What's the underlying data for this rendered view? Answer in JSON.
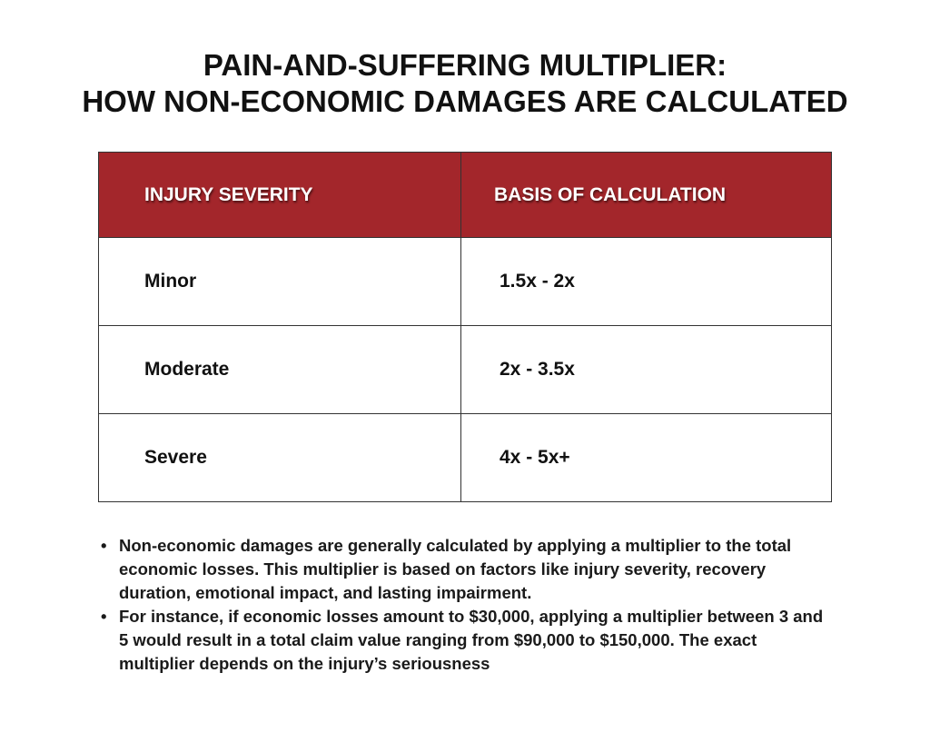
{
  "title": {
    "line1": "PAIN-AND-SUFFERING MULTIPLIER:",
    "line2": "HOW NON-ECONOMIC DAMAGES ARE CALCULATED"
  },
  "table": {
    "header_color": "#a3262b",
    "columns": [
      "INJURY SEVERITY",
      "BASIS OF CALCULATION"
    ],
    "rows": [
      {
        "severity": "Minor",
        "basis": "1.5x - 2x"
      },
      {
        "severity": "Moderate",
        "basis": "2x - 3.5x"
      },
      {
        "severity": "Severe",
        "basis": "4x - 5x+"
      }
    ]
  },
  "bullets": [
    "Non-economic damages are generally calculated by applying a multiplier to the total economic losses. This multiplier is based on factors like injury severity, recovery duration, emotional impact, and lasting impairment.",
    "For instance, if economic losses amount to $30,000, applying a multiplier between 3 and 5 would result in a total claim value ranging from $90,000 to $150,000. The exact multiplier depends on the injury’s seriousness"
  ],
  "bullet_glyph": "•"
}
